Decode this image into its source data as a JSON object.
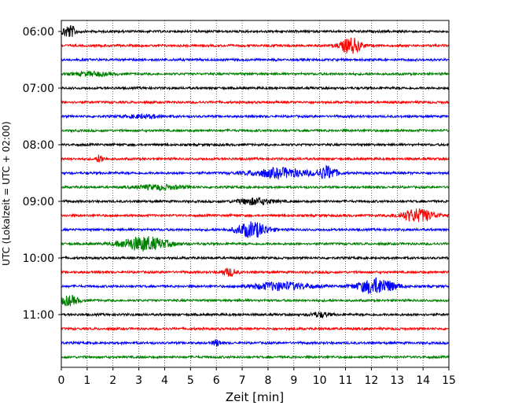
{
  "chart_data": {
    "type": "line",
    "title": "",
    "xlabel": "Zeit  [min]",
    "ylabel": "UTC (Lokalzeit = UTC + 02:00)",
    "xlim": [
      0,
      15
    ],
    "x_ticks": [
      "0",
      "1",
      "2",
      "3",
      "4",
      "5",
      "6",
      "7",
      "8",
      "9",
      "10",
      "11",
      "12",
      "13",
      "14",
      "15"
    ],
    "y_ticks": [
      "06:00",
      "07:00",
      "08:00",
      "09:00",
      "10:00",
      "11:00"
    ],
    "grid": "vertical dotted lines at each minute",
    "trace_interval_minutes": 15,
    "trace_colors": [
      "#000000",
      "#ff0000",
      "#0000ff",
      "#008000"
    ],
    "traces": [
      {
        "start": "06:00",
        "events": [
          {
            "t": 0.3,
            "amp": 8,
            "dur": 0.6
          }
        ]
      },
      {
        "start": "06:15",
        "events": [
          {
            "t": 11.2,
            "amp": 10,
            "dur": 0.9
          }
        ]
      },
      {
        "start": "06:30",
        "events": []
      },
      {
        "start": "06:45",
        "events": [
          {
            "t": 1.2,
            "amp": 2.5,
            "dur": 1.5
          }
        ]
      },
      {
        "start": "07:00",
        "events": []
      },
      {
        "start": "07:15",
        "events": []
      },
      {
        "start": "07:30",
        "events": [
          {
            "t": 3.2,
            "amp": 2,
            "dur": 1.5
          }
        ]
      },
      {
        "start": "07:45",
        "events": []
      },
      {
        "start": "08:00",
        "events": []
      },
      {
        "start": "08:15",
        "events": [
          {
            "t": 1.5,
            "amp": 5,
            "dur": 0.3
          }
        ]
      },
      {
        "start": "08:30",
        "events": [
          {
            "t": 8.5,
            "amp": 6,
            "dur": 2.5
          },
          {
            "t": 10.3,
            "amp": 8,
            "dur": 0.8
          }
        ]
      },
      {
        "start": "08:45",
        "events": [
          {
            "t": 3.8,
            "amp": 3,
            "dur": 2.0
          }
        ]
      },
      {
        "start": "09:00",
        "events": [
          {
            "t": 7.5,
            "amp": 4,
            "dur": 1.5
          }
        ]
      },
      {
        "start": "09:15",
        "events": [
          {
            "t": 13.8,
            "amp": 8,
            "dur": 1.5
          }
        ]
      },
      {
        "start": "09:30",
        "events": [
          {
            "t": 7.4,
            "amp": 10,
            "dur": 1.3
          }
        ]
      },
      {
        "start": "09:45",
        "events": [
          {
            "t": 3.2,
            "amp": 9,
            "dur": 2.0
          }
        ]
      },
      {
        "start": "10:00",
        "events": []
      },
      {
        "start": "10:15",
        "events": [
          {
            "t": 6.5,
            "amp": 5,
            "dur": 0.6
          }
        ]
      },
      {
        "start": "10:30",
        "events": [
          {
            "t": 8.5,
            "amp": 5,
            "dur": 2.5
          },
          {
            "t": 12.2,
            "amp": 10,
            "dur": 1.6
          }
        ]
      },
      {
        "start": "10:45",
        "events": [
          {
            "t": 0.3,
            "amp": 6,
            "dur": 0.8
          }
        ]
      },
      {
        "start": "11:00",
        "events": [
          {
            "t": 10.0,
            "amp": 3,
            "dur": 0.8
          }
        ]
      },
      {
        "start": "11:15",
        "events": []
      },
      {
        "start": "11:30",
        "events": [
          {
            "t": 6.0,
            "amp": 4,
            "dur": 0.3
          }
        ]
      },
      {
        "start": "11:45",
        "events": []
      }
    ]
  }
}
